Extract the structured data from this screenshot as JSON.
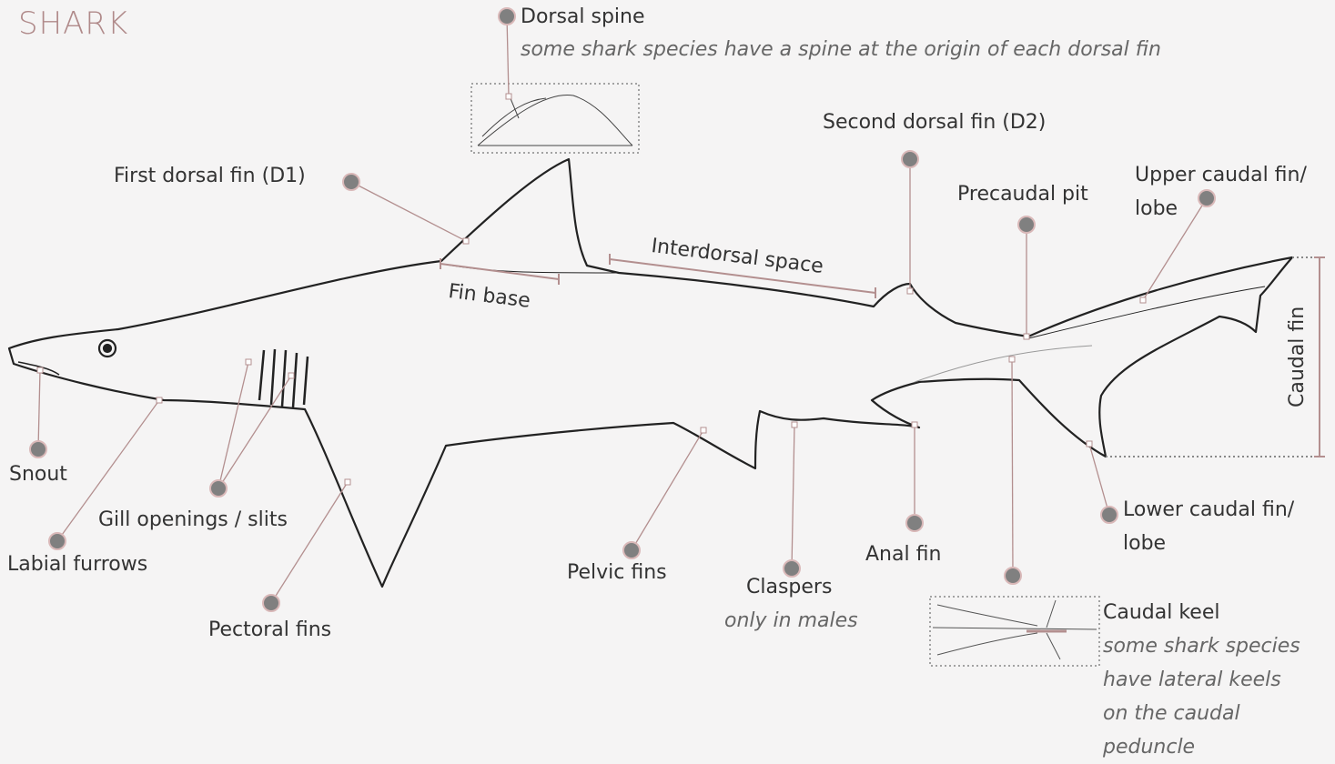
{
  "title": "SHARK",
  "labels": [
    {
      "label": "Dorsal spine",
      "note": "some shark species have a spine at the origin of each dorsal fin"
    },
    {
      "label": "First dorsal fin (D1)"
    },
    {
      "label": "Second dorsal fin (D2)"
    },
    {
      "label": "Precaudal pit"
    },
    {
      "label": "Upper caudal fin/ lobe"
    },
    {
      "label": "Interdorsal space"
    },
    {
      "label": "Fin base"
    },
    {
      "label": "Caudal fin"
    },
    {
      "label": "Snout"
    },
    {
      "label": "Labial furrows"
    },
    {
      "label": "Gill openings / slits"
    },
    {
      "label": "Pectoral fins"
    },
    {
      "label": "Pelvic fins"
    },
    {
      "label": "Claspers",
      "note": "only in males"
    },
    {
      "label": "Anal fin"
    },
    {
      "label": "Lower caudal fin/ lobe"
    },
    {
      "label": "Caudal keel",
      "note": "some shark species have lateral keels on the caudal peduncle"
    }
  ]
}
